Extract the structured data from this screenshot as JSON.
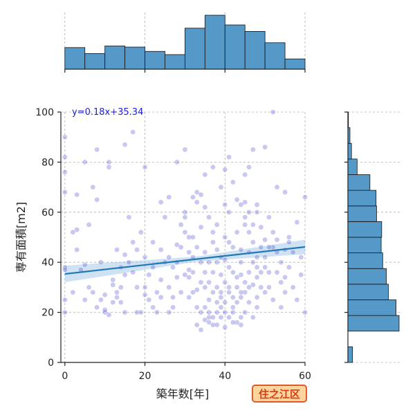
{
  "badge": "住之江区",
  "chart_data": {
    "type": "scatter",
    "xlabel": "築年数[年]",
    "ylabel": "専有面積[m2]",
    "xlim": [
      -1,
      60
    ],
    "ylim": [
      0,
      100
    ],
    "xticks": [
      0,
      20,
      40,
      60
    ],
    "yticks": [
      0,
      20,
      40,
      60,
      80,
      100
    ],
    "grid": true,
    "regression": {
      "slope": 0.18,
      "intercept": 35.34,
      "label": "y=0.18x+35.34"
    },
    "colors": {
      "point": "#3a3ac8",
      "line": "#1f77b4",
      "band": "#9ec5e8",
      "hist": "#5499c7",
      "hist_edge": "#111111"
    },
    "x_hist": {
      "bins": [
        0,
        5,
        10,
        15,
        20,
        25,
        30,
        35,
        40,
        45,
        50,
        55,
        60
      ],
      "counts": [
        40,
        29,
        43,
        41,
        33,
        27,
        76,
        100,
        82,
        70,
        49,
        19,
        12
      ]
    },
    "y_hist": {
      "bins": [
        0,
        6.25,
        12.5,
        18.75,
        25,
        31.25,
        37.5,
        43.75,
        50,
        56.25,
        62.5,
        68.75,
        75,
        81.25,
        87.5,
        93.75,
        100
      ],
      "counts": [
        9,
        0,
        100,
        94,
        79,
        75,
        68,
        65,
        66,
        56,
        55,
        43,
        18,
        7,
        4,
        1
      ]
    },
    "points": [
      [
        0,
        90
      ],
      [
        0,
        82
      ],
      [
        0,
        76
      ],
      [
        0,
        68
      ],
      [
        0,
        38
      ],
      [
        0,
        37
      ],
      [
        0,
        25
      ],
      [
        0,
        20
      ],
      [
        2,
        52
      ],
      [
        3,
        53
      ],
      [
        4,
        37
      ],
      [
        5,
        39
      ],
      [
        6,
        30
      ],
      [
        7,
        28
      ],
      [
        8,
        22
      ],
      [
        9,
        25
      ],
      [
        10,
        20
      ],
      [
        10,
        21
      ],
      [
        11,
        19
      ],
      [
        11,
        80
      ],
      [
        11,
        78
      ],
      [
        12,
        33
      ],
      [
        12,
        31
      ],
      [
        13,
        28
      ],
      [
        13,
        26
      ],
      [
        14,
        24
      ],
      [
        14,
        38
      ],
      [
        15,
        35
      ],
      [
        15,
        43
      ],
      [
        16,
        40
      ],
      [
        17,
        48
      ],
      [
        18,
        45
      ],
      [
        18,
        20
      ],
      [
        19,
        20
      ],
      [
        20,
        30
      ],
      [
        20,
        27
      ],
      [
        21,
        25
      ],
      [
        22,
        22
      ],
      [
        23,
        20
      ],
      [
        24,
        26
      ],
      [
        25,
        40
      ],
      [
        26,
        42
      ],
      [
        27,
        38
      ],
      [
        28,
        47
      ],
      [
        29,
        55
      ],
      [
        30,
        58
      ],
      [
        30,
        60
      ],
      [
        31,
        50
      ],
      [
        31,
        44
      ],
      [
        32,
        42
      ],
      [
        32,
        66
      ],
      [
        33,
        64
      ],
      [
        33,
        68
      ],
      [
        34,
        67
      ],
      [
        34,
        40
      ],
      [
        35,
        30
      ],
      [
        35,
        22
      ],
      [
        36,
        25
      ],
      [
        36,
        18
      ],
      [
        37,
        15
      ],
      [
        37,
        48
      ],
      [
        38,
        45
      ],
      [
        38,
        55
      ],
      [
        39,
        35
      ],
      [
        39,
        42
      ],
      [
        40,
        50
      ],
      [
        40,
        63
      ],
      [
        41,
        60
      ],
      [
        41,
        28
      ],
      [
        42,
        22
      ],
      [
        43,
        16
      ],
      [
        44,
        35
      ],
      [
        44,
        45
      ],
      [
        45,
        55
      ],
      [
        45,
        58
      ],
      [
        46,
        52
      ],
      [
        47,
        48
      ],
      [
        48,
        42
      ],
      [
        48,
        60
      ],
      [
        49,
        36
      ],
      [
        50,
        38
      ],
      [
        51,
        30
      ],
      [
        52,
        25
      ],
      [
        53,
        49
      ],
      [
        54,
        40
      ],
      [
        55,
        45
      ],
      [
        56,
        50
      ],
      [
        57,
        30
      ],
      [
        58,
        25
      ],
      [
        59,
        35
      ],
      [
        60,
        66
      ],
      [
        60,
        20
      ],
      [
        2,
        28
      ],
      [
        3,
        45
      ],
      [
        5,
        25
      ],
      [
        6,
        55
      ],
      [
        8,
        65
      ],
      [
        9,
        40
      ],
      [
        16,
        58
      ],
      [
        18,
        30
      ],
      [
        19,
        52
      ],
      [
        21,
        35
      ],
      [
        22,
        48
      ],
      [
        24,
        33
      ],
      [
        26,
        30
      ],
      [
        27,
        22
      ],
      [
        28,
        34
      ],
      [
        29,
        28
      ],
      [
        30,
        35
      ],
      [
        31,
        26
      ],
      [
        33,
        29
      ],
      [
        34,
        20
      ],
      [
        35,
        62
      ],
      [
        36,
        58
      ],
      [
        37,
        52
      ],
      [
        38,
        30
      ],
      [
        39,
        22
      ],
      [
        40,
        41
      ],
      [
        41,
        38
      ],
      [
        42,
        46
      ],
      [
        43,
        52
      ],
      [
        44,
        26
      ],
      [
        45,
        28
      ],
      [
        46,
        44
      ],
      [
        47,
        31
      ],
      [
        48,
        26
      ],
      [
        49,
        54
      ],
      [
        50,
        49
      ],
      [
        51,
        58
      ],
      [
        52,
        46
      ],
      [
        53,
        36
      ],
      [
        54,
        22
      ],
      [
        55,
        28
      ],
      [
        56,
        38
      ],
      [
        57,
        44
      ],
      [
        58,
        56
      ],
      [
        59,
        42
      ],
      [
        26,
        20
      ],
      [
        27,
        26
      ],
      [
        28,
        40
      ],
      [
        29,
        46
      ],
      [
        30,
        52
      ],
      [
        31,
        34
      ],
      [
        32,
        36
      ],
      [
        33,
        46
      ],
      [
        34,
        54
      ],
      [
        35,
        44
      ],
      [
        36,
        32
      ],
      [
        37,
        36
      ],
      [
        38,
        40
      ],
      [
        39,
        26
      ],
      [
        40,
        32
      ],
      [
        41,
        48
      ],
      [
        42,
        36
      ],
      [
        43,
        30
      ],
      [
        44,
        40
      ],
      [
        45,
        64
      ],
      [
        46,
        60
      ],
      [
        47,
        55
      ],
      [
        48,
        34
      ],
      [
        49,
        46
      ],
      [
        50,
        42
      ],
      [
        51,
        46
      ],
      [
        52,
        52
      ],
      [
        53,
        44
      ],
      [
        54,
        32
      ],
      [
        55,
        34
      ],
      [
        56,
        48
      ],
      [
        10,
        27
      ],
      [
        12,
        24
      ],
      [
        13,
        45
      ],
      [
        14,
        30
      ],
      [
        15,
        20
      ],
      [
        17,
        36
      ],
      [
        20,
        42
      ],
      [
        22,
        38
      ],
      [
        23,
        28
      ],
      [
        24,
        45
      ],
      [
        25,
        58
      ],
      [
        35,
        75
      ],
      [
        37,
        78
      ],
      [
        39,
        70
      ],
      [
        40,
        77
      ],
      [
        41,
        82
      ],
      [
        42,
        72
      ],
      [
        43,
        65
      ],
      [
        44,
        63
      ],
      [
        45,
        75
      ],
      [
        46,
        78
      ],
      [
        47,
        85
      ],
      [
        48,
        63
      ],
      [
        50,
        86
      ],
      [
        52,
        100
      ],
      [
        53,
        70
      ],
      [
        55,
        68
      ],
      [
        30,
        85
      ],
      [
        28,
        80
      ],
      [
        26,
        66
      ],
      [
        24,
        64
      ],
      [
        20,
        78
      ],
      [
        17,
        92
      ],
      [
        15,
        87
      ],
      [
        8,
        85
      ],
      [
        7,
        70
      ],
      [
        5,
        80
      ],
      [
        3,
        67
      ],
      [
        31,
        37
      ],
      [
        32,
        28
      ],
      [
        33,
        22
      ],
      [
        34,
        32
      ],
      [
        36,
        40
      ],
      [
        37,
        28
      ],
      [
        38,
        20
      ],
      [
        39,
        18
      ],
      [
        40,
        24
      ],
      [
        41,
        18
      ],
      [
        42,
        20
      ],
      [
        43,
        24
      ],
      [
        44,
        18
      ],
      [
        45,
        20
      ],
      [
        46,
        24
      ],
      [
        47,
        18
      ],
      [
        48,
        22
      ],
      [
        49,
        30
      ],
      [
        50,
        28
      ],
      [
        51,
        36
      ],
      [
        36,
        20
      ],
      [
        35,
        36
      ],
      [
        37,
        18
      ],
      [
        38,
        24
      ],
      [
        39,
        28
      ],
      [
        40,
        20
      ],
      [
        41,
        30
      ],
      [
        42,
        26
      ],
      [
        43,
        34
      ],
      [
        44,
        28
      ],
      [
        45,
        32
      ],
      [
        46,
        36
      ],
      [
        47,
        40
      ],
      [
        48,
        38
      ],
      [
        33,
        15
      ],
      [
        34,
        13
      ],
      [
        35,
        17
      ],
      [
        36,
        16
      ],
      [
        38,
        15
      ],
      [
        40,
        14
      ],
      [
        42,
        16
      ],
      [
        44,
        15
      ],
      [
        46,
        30
      ],
      [
        32,
        50
      ]
    ]
  }
}
